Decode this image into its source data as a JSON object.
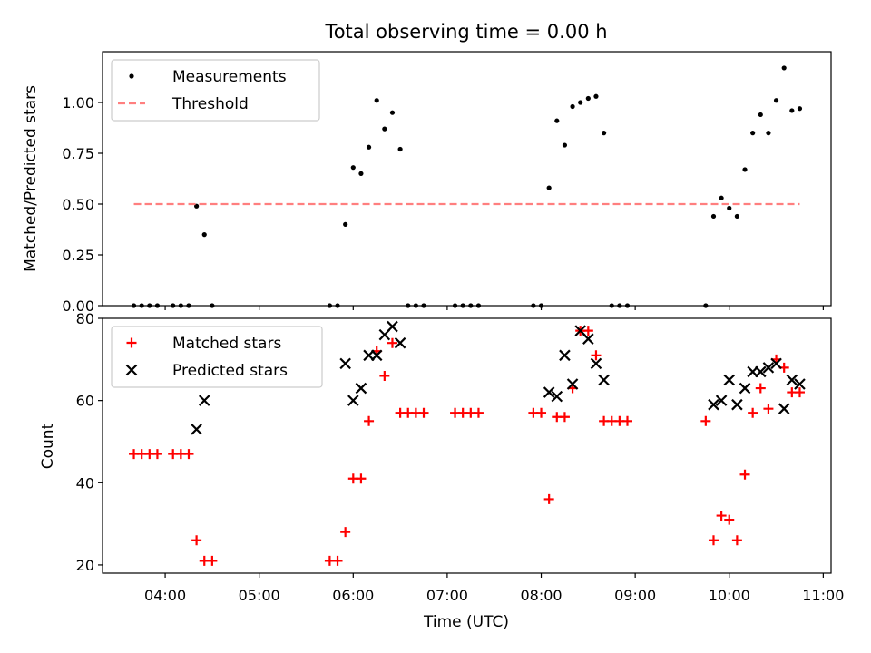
{
  "figure": {
    "title": "Total observing time = 0.00 h"
  },
  "chart_data": [
    {
      "type": "scatter",
      "ylabel": "Matched/Predicted stars",
      "xlabel": "",
      "xlim": [
        "03:20",
        "11:05"
      ],
      "ylim": [
        0,
        1.25
      ],
      "y_ticks": [
        0,
        0.25,
        0.5,
        0.75,
        1.0
      ],
      "y_tick_labels": [
        "0.00",
        "0.25",
        "0.50",
        "0.75",
        "1.00"
      ],
      "x_ticks": [
        "04:00",
        "05:00",
        "06:00",
        "07:00",
        "08:00",
        "09:00",
        "10:00",
        "11:00"
      ],
      "show_x_tick_labels": false,
      "legend": {
        "placement": "upper-left",
        "entries": [
          "Measurements",
          "Threshold"
        ]
      },
      "series": [
        {
          "name": "Measurements",
          "marker": "dot",
          "color": "#000000",
          "points": [
            [
              "03:40",
              0
            ],
            [
              "03:45",
              0
            ],
            [
              "03:50",
              0
            ],
            [
              "03:55",
              0
            ],
            [
              "04:05",
              0
            ],
            [
              "04:10",
              0
            ],
            [
              "04:15",
              0
            ],
            [
              "04:20",
              0.49
            ],
            [
              "04:25",
              0.35
            ],
            [
              "04:30",
              0
            ],
            [
              "05:45",
              0
            ],
            [
              "05:50",
              0
            ],
            [
              "05:55",
              0.4
            ],
            [
              "06:00",
              0.68
            ],
            [
              "06:05",
              0.65
            ],
            [
              "06:10",
              0.78
            ],
            [
              "06:15",
              1.01
            ],
            [
              "06:20",
              0.87
            ],
            [
              "06:25",
              0.95
            ],
            [
              "06:30",
              0.77
            ],
            [
              "06:35",
              0
            ],
            [
              "06:40",
              0
            ],
            [
              "06:45",
              0
            ],
            [
              "07:05",
              0
            ],
            [
              "07:10",
              0
            ],
            [
              "07:15",
              0
            ],
            [
              "07:20",
              0
            ],
            [
              "07:55",
              0
            ],
            [
              "08:00",
              0
            ],
            [
              "08:05",
              0.58
            ],
            [
              "08:10",
              0.91
            ],
            [
              "08:15",
              0.79
            ],
            [
              "08:20",
              0.98
            ],
            [
              "08:25",
              1.0
            ],
            [
              "08:30",
              1.02
            ],
            [
              "08:35",
              1.03
            ],
            [
              "08:40",
              0.85
            ],
            [
              "08:45",
              0
            ],
            [
              "08:50",
              0
            ],
            [
              "08:55",
              0
            ],
            [
              "09:45",
              0
            ],
            [
              "09:50",
              0.44
            ],
            [
              "09:55",
              0.53
            ],
            [
              "10:00",
              0.48
            ],
            [
              "10:05",
              0.44
            ],
            [
              "10:10",
              0.67
            ],
            [
              "10:15",
              0.85
            ],
            [
              "10:20",
              0.94
            ],
            [
              "10:25",
              0.85
            ],
            [
              "10:30",
              1.01
            ],
            [
              "10:35",
              1.17
            ],
            [
              "10:40",
              0.96
            ],
            [
              "10:45",
              0.97
            ]
          ]
        },
        {
          "name": "Threshold",
          "marker": "dashed-line",
          "color": "#ff7f7f",
          "points": [
            [
              "03:40",
              0.5
            ],
            [
              "10:45",
              0.5
            ]
          ]
        }
      ]
    },
    {
      "type": "scatter",
      "xlabel": "Time (UTC)",
      "ylabel": "Count",
      "xlim": [
        "03:20",
        "11:05"
      ],
      "ylim": [
        18,
        80
      ],
      "y_ticks": [
        20,
        40,
        60,
        80
      ],
      "y_tick_labels": [
        "20",
        "40",
        "60",
        "80"
      ],
      "x_ticks": [
        "04:00",
        "05:00",
        "06:00",
        "07:00",
        "08:00",
        "09:00",
        "10:00",
        "11:00"
      ],
      "x_tick_labels": [
        "04:00",
        "05:00",
        "06:00",
        "07:00",
        "08:00",
        "09:00",
        "10:00",
        "11:00"
      ],
      "legend": {
        "placement": "upper-left",
        "entries": [
          "Matched stars",
          "Predicted stars"
        ]
      },
      "series": [
        {
          "name": "Matched stars",
          "marker": "plus",
          "color": "#ff0000",
          "points": [
            [
              "03:40",
              47
            ],
            [
              "03:45",
              47
            ],
            [
              "03:50",
              47
            ],
            [
              "03:55",
              47
            ],
            [
              "04:05",
              47
            ],
            [
              "04:10",
              47
            ],
            [
              "04:15",
              47
            ],
            [
              "04:20",
              26
            ],
            [
              "04:25",
              21
            ],
            [
              "04:30",
              21
            ],
            [
              "05:45",
              21
            ],
            [
              "05:50",
              21
            ],
            [
              "05:55",
              28
            ],
            [
              "06:00",
              41
            ],
            [
              "06:05",
              41
            ],
            [
              "06:10",
              55
            ],
            [
              "06:15",
              72
            ],
            [
              "06:20",
              66
            ],
            [
              "06:25",
              74
            ],
            [
              "06:30",
              57
            ],
            [
              "06:35",
              57
            ],
            [
              "06:40",
              57
            ],
            [
              "06:45",
              57
            ],
            [
              "07:05",
              57
            ],
            [
              "07:10",
              57
            ],
            [
              "07:15",
              57
            ],
            [
              "07:20",
              57
            ],
            [
              "07:55",
              57
            ],
            [
              "08:00",
              57
            ],
            [
              "08:05",
              36
            ],
            [
              "08:10",
              56
            ],
            [
              "08:15",
              56
            ],
            [
              "08:20",
              63
            ],
            [
              "08:25",
              77
            ],
            [
              "08:30",
              77
            ],
            [
              "08:35",
              71
            ],
            [
              "08:40",
              55
            ],
            [
              "08:45",
              55
            ],
            [
              "08:50",
              55
            ],
            [
              "08:55",
              55
            ],
            [
              "09:45",
              55
            ],
            [
              "09:50",
              26
            ],
            [
              "09:55",
              32
            ],
            [
              "10:00",
              31
            ],
            [
              "10:05",
              26
            ],
            [
              "10:10",
              42
            ],
            [
              "10:15",
              57
            ],
            [
              "10:20",
              63
            ],
            [
              "10:25",
              58
            ],
            [
              "10:30",
              70
            ],
            [
              "10:35",
              68
            ],
            [
              "10:40",
              62
            ],
            [
              "10:45",
              62
            ]
          ]
        },
        {
          "name": "Predicted stars",
          "marker": "x",
          "color": "#000000",
          "points": [
            [
              "04:20",
              53
            ],
            [
              "04:25",
              60
            ],
            [
              "05:55",
              69
            ],
            [
              "06:00",
              60
            ],
            [
              "06:05",
              63
            ],
            [
              "06:10",
              71
            ],
            [
              "06:15",
              71
            ],
            [
              "06:20",
              76
            ],
            [
              "06:25",
              78
            ],
            [
              "06:30",
              74
            ],
            [
              "08:05",
              62
            ],
            [
              "08:10",
              61
            ],
            [
              "08:15",
              71
            ],
            [
              "08:20",
              64
            ],
            [
              "08:25",
              77
            ],
            [
              "08:30",
              75
            ],
            [
              "08:35",
              69
            ],
            [
              "08:40",
              65
            ],
            [
              "09:50",
              59
            ],
            [
              "09:55",
              60
            ],
            [
              "10:00",
              65
            ],
            [
              "10:05",
              59
            ],
            [
              "10:10",
              63
            ],
            [
              "10:15",
              67
            ],
            [
              "10:20",
              67
            ],
            [
              "10:25",
              68
            ],
            [
              "10:30",
              69
            ],
            [
              "10:35",
              58
            ],
            [
              "10:40",
              65
            ],
            [
              "10:45",
              64
            ]
          ]
        }
      ]
    }
  ]
}
